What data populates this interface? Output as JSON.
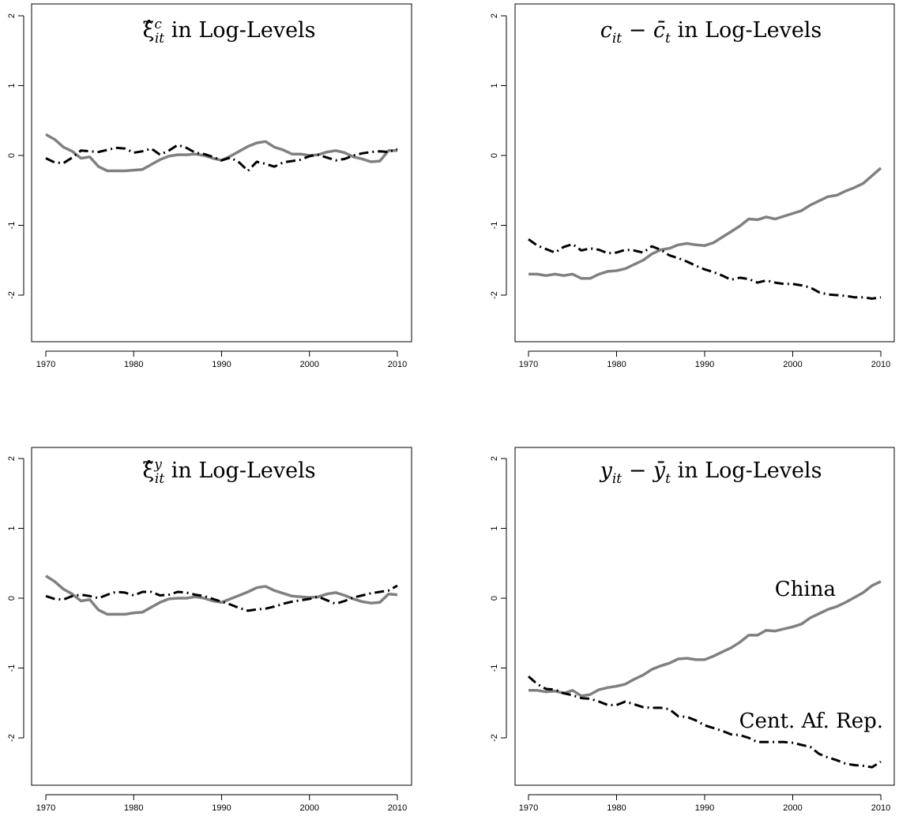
{
  "chart_data": [
    {
      "type": "line",
      "title": "ξ̂ᶜᵢₜ in Log-Levels",
      "title_parts": {
        "main": "ξ̂",
        "sup": "c",
        "sub": "it",
        "rest": " in Log-Levels"
      },
      "xlim": [
        1970,
        2010
      ],
      "ylim": [
        -2.6,
        2.1
      ],
      "x_ticks": [
        "1970",
        "1980",
        "1990",
        "2000",
        "2010"
      ],
      "y_ticks": [
        "-2",
        "-1",
        "0",
        "1",
        "2"
      ],
      "x": [
        1970,
        1971,
        1972,
        1973,
        1974,
        1975,
        1976,
        1977,
        1978,
        1979,
        1980,
        1981,
        1982,
        1983,
        1984,
        1985,
        1986,
        1987,
        1988,
        1989,
        1990,
        1991,
        1992,
        1993,
        1994,
        1995,
        1996,
        1997,
        1998,
        1999,
        2000,
        2001,
        2002,
        2003,
        2004,
        2005,
        2006,
        2007,
        2008,
        2009,
        2010
      ],
      "series": [
        {
          "color": "#808080",
          "dash": "solid",
          "values": [
            0.3,
            0.23,
            0.12,
            0.06,
            -0.04,
            -0.02,
            -0.16,
            -0.22,
            -0.22,
            -0.22,
            -0.21,
            -0.2,
            -0.13,
            -0.06,
            -0.01,
            0.01,
            0.01,
            0.02,
            0.0,
            -0.04,
            -0.07,
            -0.01,
            0.06,
            0.13,
            0.18,
            0.2,
            0.12,
            0.08,
            0.02,
            0.02,
            0.0,
            0.01,
            0.05,
            0.07,
            0.04,
            -0.02,
            -0.05,
            -0.09,
            -0.08,
            0.07,
            0.07
          ]
        },
        {
          "color": "#000000",
          "dash": "dashdot",
          "values": [
            -0.04,
            -0.1,
            -0.11,
            -0.03,
            0.07,
            0.06,
            0.05,
            0.08,
            0.11,
            0.1,
            0.04,
            0.06,
            0.1,
            0.01,
            0.07,
            0.15,
            0.11,
            0.04,
            0.02,
            -0.02,
            -0.07,
            -0.03,
            -0.1,
            -0.22,
            -0.09,
            -0.12,
            -0.16,
            -0.1,
            -0.08,
            -0.06,
            -0.01,
            0.01,
            -0.03,
            -0.07,
            -0.05,
            0.0,
            0.03,
            0.05,
            0.06,
            0.05,
            0.09
          ]
        }
      ]
    },
    {
      "type": "line",
      "title": "cᵢₜ − c̄ₜ in Log-Levels",
      "title_parts": {
        "a": "c",
        "a_sub": "it",
        "op": " − ",
        "b": "c̄",
        "b_sub": "t",
        "rest": " in Log-Levels"
      },
      "xlim": [
        1970,
        2010
      ],
      "ylim": [
        -2.6,
        2.1
      ],
      "x_ticks": [
        "1970",
        "1980",
        "1990",
        "2000",
        "2010"
      ],
      "y_ticks": [
        "-2",
        "-1",
        "0",
        "1",
        "2"
      ],
      "x": [
        1970,
        1971,
        1972,
        1973,
        1974,
        1975,
        1976,
        1977,
        1978,
        1979,
        1980,
        1981,
        1982,
        1983,
        1984,
        1985,
        1986,
        1987,
        1988,
        1989,
        1990,
        1991,
        1992,
        1993,
        1994,
        1995,
        1996,
        1997,
        1998,
        1999,
        2000,
        2001,
        2002,
        2003,
        2004,
        2005,
        2006,
        2007,
        2008,
        2009,
        2010
      ],
      "series": [
        {
          "color": "#808080",
          "dash": "solid",
          "values": [
            -1.7,
            -1.7,
            -1.72,
            -1.7,
            -1.72,
            -1.7,
            -1.76,
            -1.76,
            -1.7,
            -1.66,
            -1.65,
            -1.62,
            -1.56,
            -1.5,
            -1.41,
            -1.35,
            -1.33,
            -1.28,
            -1.26,
            -1.28,
            -1.29,
            -1.25,
            -1.17,
            -1.09,
            -1.01,
            -0.91,
            -0.92,
            -0.88,
            -0.91,
            -0.87,
            -0.83,
            -0.79,
            -0.71,
            -0.65,
            -0.59,
            -0.57,
            -0.51,
            -0.46,
            -0.4,
            -0.29,
            -0.18
          ]
        },
        {
          "color": "#000000",
          "dash": "dashdot",
          "values": [
            -1.2,
            -1.29,
            -1.34,
            -1.39,
            -1.31,
            -1.27,
            -1.36,
            -1.33,
            -1.35,
            -1.4,
            -1.39,
            -1.35,
            -1.36,
            -1.39,
            -1.3,
            -1.35,
            -1.43,
            -1.47,
            -1.52,
            -1.58,
            -1.63,
            -1.67,
            -1.72,
            -1.78,
            -1.75,
            -1.77,
            -1.82,
            -1.79,
            -1.82,
            -1.84,
            -1.84,
            -1.86,
            -1.89,
            -1.96,
            -1.99,
            -2.0,
            -2.01,
            -2.03,
            -2.03,
            -2.05,
            -2.03
          ]
        }
      ]
    },
    {
      "type": "line",
      "title": "ξ̂ʸᵢₜ in Log-Levels",
      "title_parts": {
        "main": "ξ̂",
        "sup": "y",
        "sub": "it",
        "rest": " in Log-Levels"
      },
      "xlim": [
        1970,
        2010
      ],
      "ylim": [
        -2.6,
        2.1
      ],
      "x_ticks": [
        "1970",
        "1980",
        "1990",
        "2000",
        "2010"
      ],
      "y_ticks": [
        "-2",
        "-1",
        "0",
        "1",
        "2"
      ],
      "x": [
        1970,
        1971,
        1972,
        1973,
        1974,
        1975,
        1976,
        1977,
        1978,
        1979,
        1980,
        1981,
        1982,
        1983,
        1984,
        1985,
        1986,
        1987,
        1988,
        1989,
        1990,
        1991,
        1992,
        1993,
        1994,
        1995,
        1996,
        1997,
        1998,
        1999,
        2000,
        2001,
        2002,
        2003,
        2004,
        2005,
        2006,
        2007,
        2008,
        2009,
        2010
      ],
      "series": [
        {
          "color": "#808080",
          "dash": "solid",
          "values": [
            0.32,
            0.24,
            0.13,
            0.06,
            -0.04,
            -0.02,
            -0.17,
            -0.23,
            -0.23,
            -0.23,
            -0.21,
            -0.2,
            -0.13,
            -0.06,
            -0.01,
            0.0,
            0.0,
            0.02,
            0.0,
            -0.04,
            -0.06,
            -0.01,
            0.04,
            0.09,
            0.15,
            0.17,
            0.11,
            0.07,
            0.03,
            0.02,
            0.01,
            0.02,
            0.06,
            0.08,
            0.04,
            -0.01,
            -0.05,
            -0.07,
            -0.06,
            0.06,
            0.05
          ]
        },
        {
          "color": "#000000",
          "dash": "dashdot",
          "values": [
            0.03,
            -0.01,
            -0.02,
            0.03,
            0.05,
            0.03,
            0.0,
            0.05,
            0.09,
            0.08,
            0.04,
            0.09,
            0.09,
            0.04,
            0.05,
            0.09,
            0.08,
            0.05,
            0.03,
            -0.01,
            -0.05,
            -0.09,
            -0.14,
            -0.18,
            -0.16,
            -0.15,
            -0.12,
            -0.08,
            -0.05,
            -0.03,
            -0.01,
            0.02,
            -0.03,
            -0.08,
            -0.04,
            0.01,
            0.04,
            0.07,
            0.09,
            0.11,
            0.18
          ]
        }
      ]
    },
    {
      "type": "line",
      "title": "yᵢₜ − ȳₜ in Log-Levels",
      "title_parts": {
        "a": "y",
        "a_sub": "it",
        "op": " − ",
        "b": "ȳ",
        "b_sub": "t",
        "rest": " in Log-Levels"
      },
      "xlim": [
        1970,
        2010
      ],
      "ylim": [
        -2.6,
        2.1
      ],
      "x_ticks": [
        "1970",
        "1980",
        "1990",
        "2000",
        "2010"
      ],
      "y_ticks": [
        "-2",
        "-1",
        "0",
        "1",
        "2"
      ],
      "x": [
        1970,
        1971,
        1972,
        1973,
        1974,
        1975,
        1976,
        1977,
        1978,
        1979,
        1980,
        1981,
        1982,
        1983,
        1984,
        1985,
        1986,
        1987,
        1988,
        1989,
        1990,
        1991,
        1992,
        1993,
        1994,
        1995,
        1996,
        1997,
        1998,
        1999,
        2000,
        2001,
        2002,
        2003,
        2004,
        2005,
        2006,
        2007,
        2008,
        2009,
        2010
      ],
      "series": [
        {
          "name": "China",
          "color": "#808080",
          "dash": "solid",
          "values": [
            -1.32,
            -1.32,
            -1.34,
            -1.33,
            -1.36,
            -1.32,
            -1.4,
            -1.38,
            -1.31,
            -1.28,
            -1.26,
            -1.23,
            -1.16,
            -1.1,
            -1.02,
            -0.97,
            -0.93,
            -0.87,
            -0.86,
            -0.88,
            -0.88,
            -0.83,
            -0.77,
            -0.71,
            -0.63,
            -0.53,
            -0.53,
            -0.46,
            -0.47,
            -0.44,
            -0.41,
            -0.37,
            -0.28,
            -0.22,
            -0.16,
            -0.12,
            -0.06,
            0.01,
            0.08,
            0.18,
            0.24
          ]
        },
        {
          "name": "Cent. Af. Rep.",
          "color": "#000000",
          "dash": "dashdot",
          "values": [
            -1.12,
            -1.23,
            -1.3,
            -1.31,
            -1.36,
            -1.39,
            -1.43,
            -1.44,
            -1.48,
            -1.53,
            -1.53,
            -1.48,
            -1.52,
            -1.56,
            -1.57,
            -1.57,
            -1.59,
            -1.69,
            -1.7,
            -1.75,
            -1.82,
            -1.86,
            -1.9,
            -1.95,
            -1.96,
            -2.0,
            -2.06,
            -2.06,
            -2.06,
            -2.06,
            -2.07,
            -2.1,
            -2.13,
            -2.23,
            -2.28,
            -2.32,
            -2.37,
            -2.39,
            -2.4,
            -2.42,
            -2.34
          ]
        }
      ],
      "annotations": [
        {
          "text": "China"
        },
        {
          "text": "Cent. Af. Rep."
        }
      ]
    }
  ]
}
